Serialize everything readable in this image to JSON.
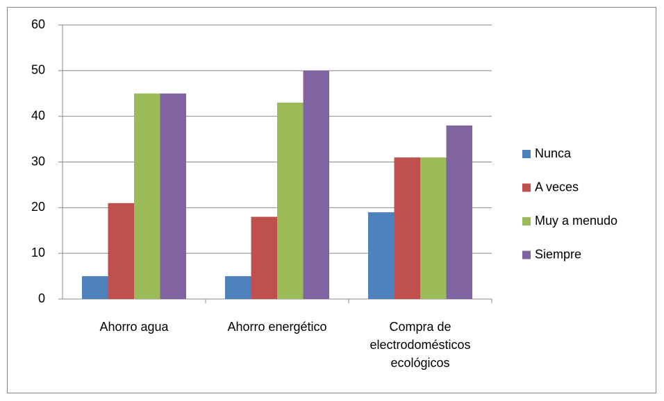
{
  "chart_data": {
    "type": "bar",
    "categories": [
      "Ahorro agua",
      "Ahorro energético",
      "Compra de electrodomésticos ecológicos"
    ],
    "series": [
      {
        "name": "Nunca",
        "color": "#4f81bd",
        "values": [
          5,
          5,
          19
        ]
      },
      {
        "name": "A veces",
        "color": "#c0504d",
        "values": [
          21,
          18,
          31
        ]
      },
      {
        "name": "Muy a menudo",
        "color": "#9bbb59",
        "values": [
          45,
          43,
          31
        ]
      },
      {
        "name": "Siempre",
        "color": "#8064a2",
        "values": [
          45,
          50,
          38
        ]
      }
    ],
    "ylim": [
      0,
      60
    ],
    "yticks": [
      0,
      10,
      20,
      30,
      40,
      50,
      60
    ],
    "grid": true,
    "legend": "right"
  }
}
